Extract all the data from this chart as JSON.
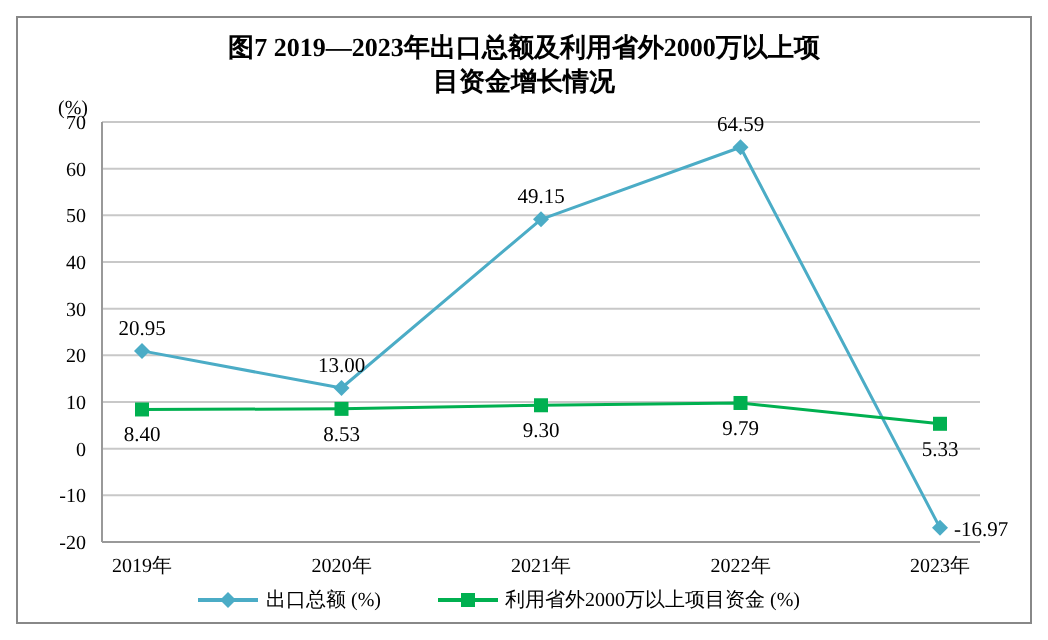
{
  "chart_data": {
    "type": "line",
    "title": "图7   2019—2023年出口总额及利用省外2000万以上项目资金增长情况",
    "ylabel": "(%)",
    "categories": [
      "2019年",
      "2020年",
      "2021年",
      "2022年",
      "2023年"
    ],
    "series": [
      {
        "name": "出口总额  (%)",
        "color": "#4bacc6",
        "marker": "diamond",
        "values": [
          20.95,
          13.0,
          49.15,
          64.59,
          -16.97
        ],
        "value_labels": [
          "20.95",
          "13.00",
          "49.15",
          "64.59",
          "-16.97"
        ]
      },
      {
        "name": "利用省外2000万以上项目资金  (%)",
        "color": "#00b050",
        "marker": "square",
        "values": [
          8.4,
          8.53,
          9.3,
          9.79,
          5.33
        ],
        "value_labels": [
          "8.40",
          "8.53",
          "9.30",
          "9.79",
          "5.33"
        ]
      }
    ],
    "ylim": [
      -20,
      70
    ],
    "yticks": [
      -20,
      -10,
      0,
      10,
      20,
      30,
      40,
      50,
      60,
      70
    ],
    "grid": "y",
    "legend": "bottom"
  }
}
